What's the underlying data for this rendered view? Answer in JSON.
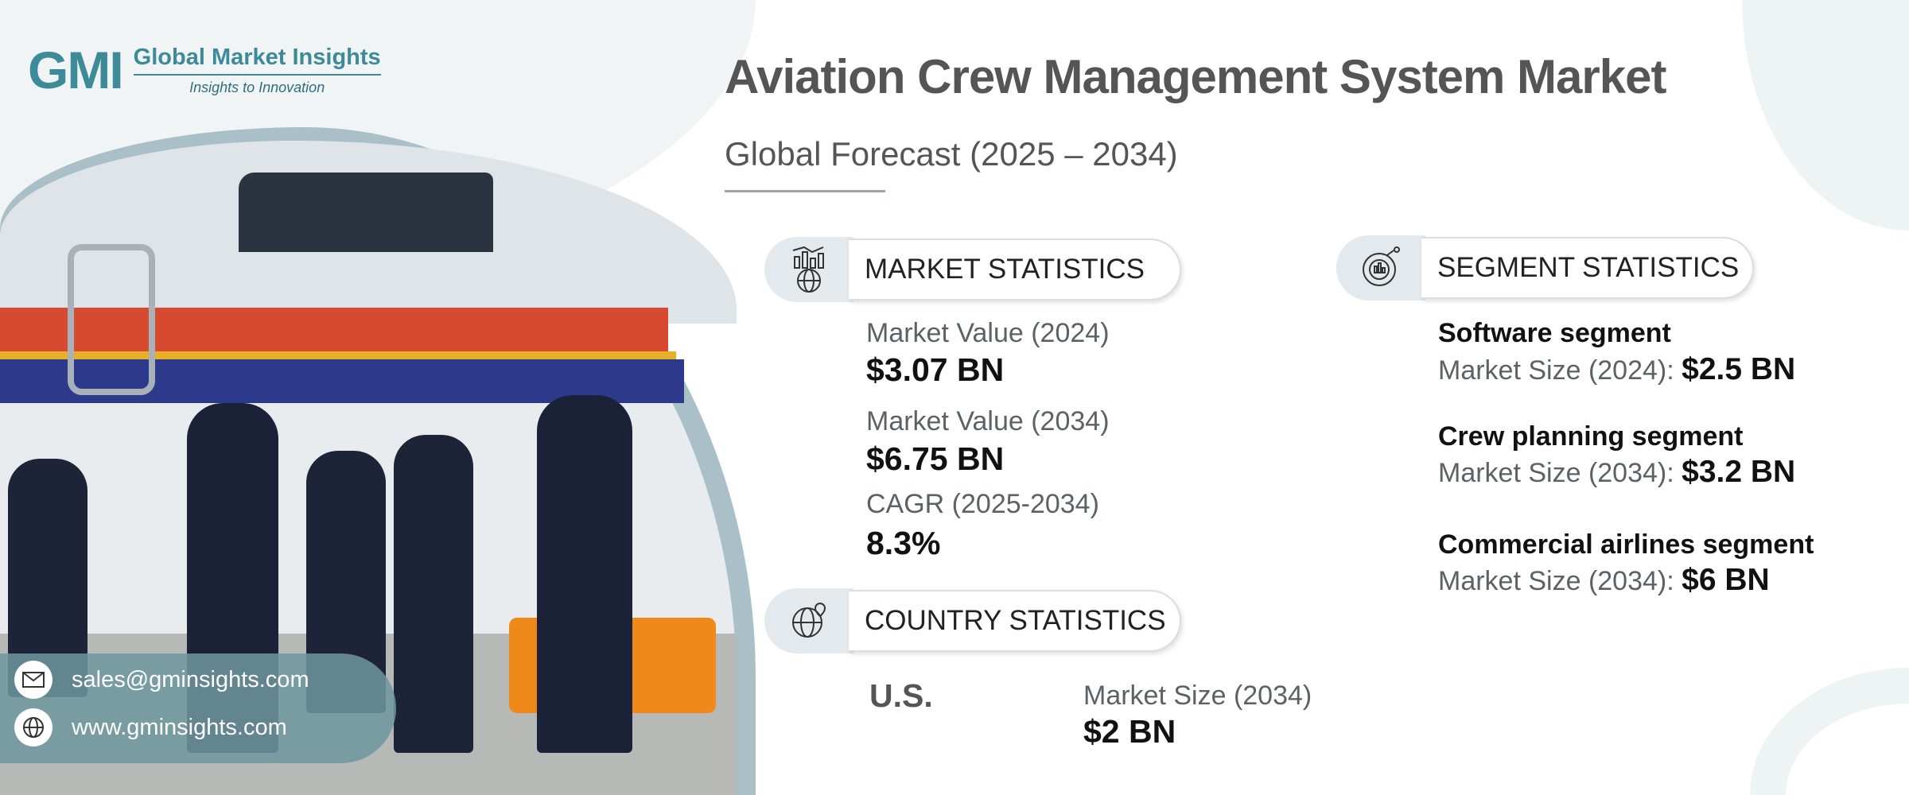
{
  "logo": {
    "mark": "GMI",
    "name": "Global Market Insights",
    "tagline": "Insights to Innovation"
  },
  "header": {
    "title": "Aviation Crew Management System Market",
    "subtitle": "Global Forecast (2025 – 2034)"
  },
  "market_statistics": {
    "heading": "MARKET STATISTICS",
    "icon": "chart-globe-icon",
    "items": [
      {
        "label": "Market Value (2024)",
        "value": "$3.07 BN"
      },
      {
        "label": "Market Value (2034)",
        "value": "$6.75 BN"
      },
      {
        "label": "CAGR (2025-2034)",
        "value": "8.3%"
      }
    ]
  },
  "country_statistics": {
    "heading": "COUNTRY STATISTICS",
    "icon": "globe-pin-icon",
    "country": "U.S.",
    "label": "Market Size (2034)",
    "value": "$2 BN"
  },
  "segment_statistics": {
    "heading": "SEGMENT STATISTICS",
    "icon": "pie-chart-icon",
    "items": [
      {
        "name": "Software segment",
        "label": "Market Size (2024):",
        "value": "$2.5 BN"
      },
      {
        "name": "Crew planning segment",
        "label": "Market Size (2034):",
        "value": "$3.2 BN"
      },
      {
        "name": "Commercial airlines segment",
        "label": "Market Size (2034):",
        "value": "$6 BN"
      }
    ]
  },
  "contact": {
    "email": "sales@gminsights.com",
    "website": "www.gminsights.com"
  },
  "colors": {
    "accent": "#4a8a99",
    "text": "#555555",
    "pill_icon_bg": "#e3e9ec"
  }
}
